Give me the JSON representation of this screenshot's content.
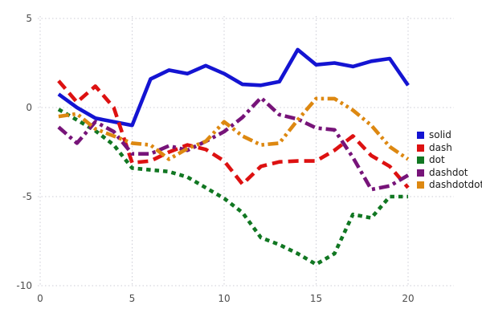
{
  "chart_data": {
    "type": "line",
    "title": "",
    "xlabel": "",
    "ylabel": "",
    "x": [
      1,
      2,
      3,
      4,
      5,
      6,
      7,
      8,
      9,
      10,
      11,
      12,
      13,
      14,
      15,
      16,
      17,
      18,
      19,
      20
    ],
    "series": [
      {
        "name": "solid",
        "style": "solid",
        "color": "#1414d2",
        "values": [
          0.75,
          0.0,
          -0.6,
          -0.8,
          -1.0,
          1.6,
          2.1,
          1.9,
          2.35,
          1.9,
          1.3,
          1.25,
          1.45,
          3.25,
          2.4,
          2.5,
          2.3,
          2.6,
          2.75,
          1.25
        ]
      },
      {
        "name": "dash",
        "style": "dash",
        "color": "#dd1111",
        "values": [
          1.5,
          0.3,
          1.2,
          0.0,
          -3.1,
          -3.0,
          -2.5,
          -2.1,
          -2.35,
          -3.0,
          -4.3,
          -3.3,
          -3.05,
          -3.0,
          -3.0,
          -2.4,
          -1.6,
          -2.7,
          -3.3,
          -4.5
        ]
      },
      {
        "name": "dot",
        "style": "dot",
        "color": "#117722",
        "values": [
          -0.1,
          -0.7,
          -1.3,
          -2.1,
          -3.4,
          -3.5,
          -3.6,
          -3.9,
          -4.5,
          -5.1,
          -5.9,
          -7.3,
          -7.7,
          -8.2,
          -8.8,
          -8.2,
          -6.0,
          -6.2,
          -5.0,
          -5.0
        ]
      },
      {
        "name": "dashdot",
        "style": "dashdot",
        "color": "#771479",
        "values": [
          -1.1,
          -2.0,
          -0.8,
          -1.35,
          -2.6,
          -2.6,
          -2.15,
          -2.4,
          -1.9,
          -1.35,
          -0.55,
          0.55,
          -0.4,
          -0.65,
          -1.15,
          -1.25,
          -2.8,
          -4.6,
          -4.4,
          -3.8
        ]
      },
      {
        "name": "dashdotdot",
        "style": "dashdotdot",
        "color": "#dd8811",
        "values": [
          -0.5,
          -0.35,
          -1.2,
          -1.6,
          -2.0,
          -2.1,
          -2.9,
          -2.3,
          -1.9,
          -0.8,
          -1.6,
          -2.1,
          -2.0,
          -0.7,
          0.5,
          0.5,
          -0.15,
          -1.0,
          -2.2,
          -2.9
        ]
      }
    ],
    "x_ticks": [
      "0",
      "5",
      "10",
      "15",
      "20"
    ],
    "x_tick_values": [
      0,
      5,
      10,
      15,
      20
    ],
    "y_ticks": [
      "5",
      "0",
      "-5",
      "-10"
    ],
    "y_tick_values": [
      5,
      0,
      -5,
      -10
    ],
    "xlim": [
      0,
      20
    ],
    "ylim": [
      -10,
      5
    ],
    "grid": "dotted",
    "grid_color": "#ccccd6",
    "tick_color": "#4d4d4d",
    "legend_position": "right",
    "legend_entries": [
      "solid",
      "dash",
      "dot",
      "dashdot",
      "dashdotdot"
    ]
  }
}
